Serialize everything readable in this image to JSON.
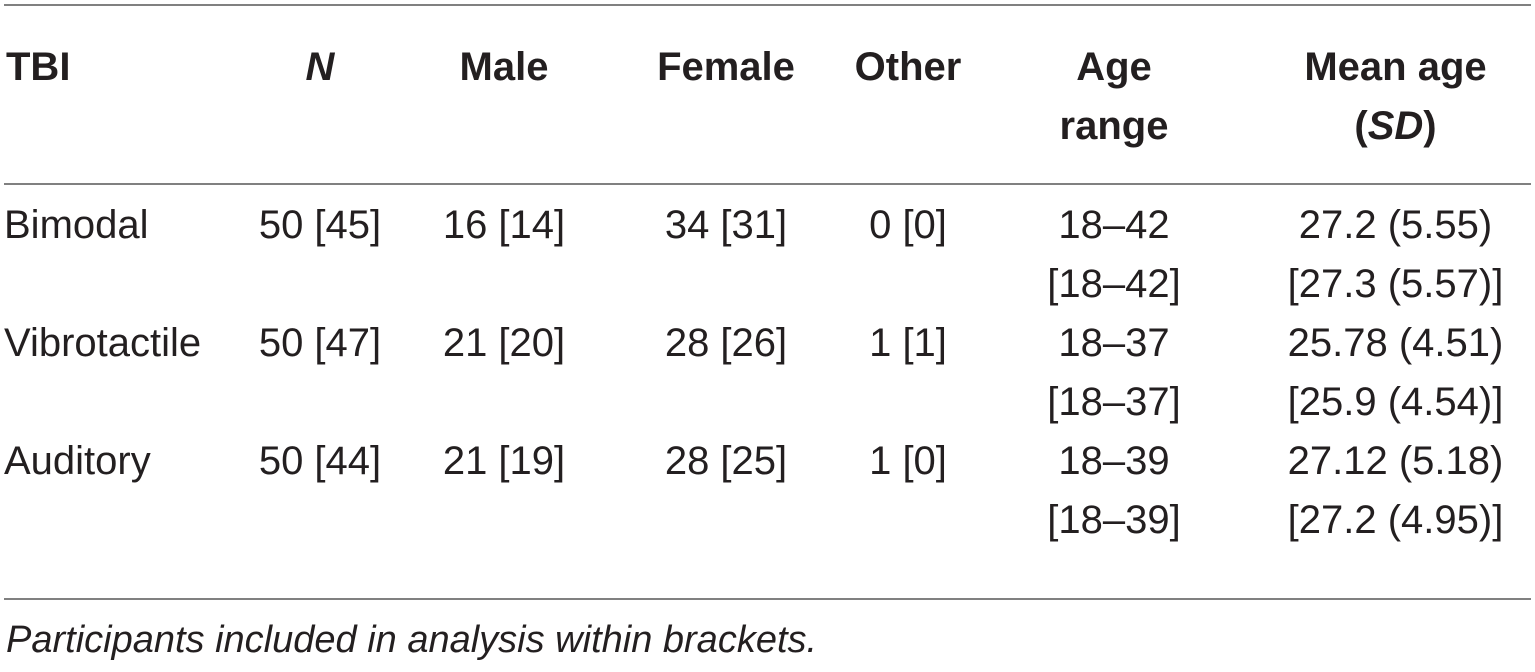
{
  "table": {
    "headers": {
      "tbi": "TBI",
      "n": "N",
      "male": "Male",
      "female": "Female",
      "other": "Other",
      "age_range_line1": "Age",
      "age_range_line2": "range",
      "mean_age_line1": "Mean age",
      "mean_age_paren_open": "(",
      "mean_age_sd": "SD",
      "mean_age_paren_close": ")"
    },
    "rows": [
      {
        "tbi": "Bimodal",
        "n": "50 [45]",
        "male": "16 [14]",
        "female": "34 [31]",
        "other": "0 [0]",
        "age_range_line1": "18–42",
        "age_range_line2": "[18–42]",
        "mean_age_line1": "27.2 (5.55)",
        "mean_age_line2": "[27.3 (5.57)]"
      },
      {
        "tbi": "Vibrotactile",
        "n": "50 [47]",
        "male": "21 [20]",
        "female": "28 [26]",
        "other": "1 [1]",
        "age_range_line1": "18–37",
        "age_range_line2": "[18–37]",
        "mean_age_line1": "25.78 (4.51)",
        "mean_age_line2": "[25.9 (4.54)]"
      },
      {
        "tbi": "Auditory",
        "n": "50 [44]",
        "male": "21 [19]",
        "female": "28 [25]",
        "other": "1 [0]",
        "age_range_line1": "18–39",
        "age_range_line2": "[18–39]",
        "mean_age_line1": "27.12 (5.18)",
        "mean_age_line2": "[27.2 (4.95)]"
      }
    ]
  },
  "footnote": "Participants included in analysis within brackets."
}
